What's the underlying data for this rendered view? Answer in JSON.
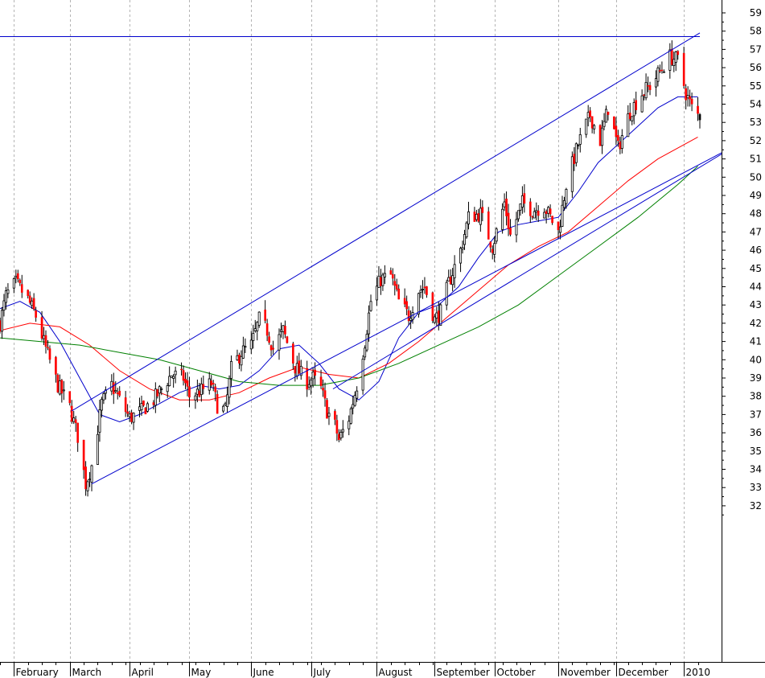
{
  "chart_data": {
    "type": "candlestick",
    "title": "",
    "xlabel": "",
    "ylabel": "",
    "grid": {
      "vertical": true,
      "horizontal": false,
      "style": "dashed"
    },
    "ylim": [
      31,
      59.5
    ],
    "y_ticks": [
      32,
      33,
      34,
      35,
      36,
      37,
      38,
      39,
      40,
      41,
      42,
      43,
      44,
      45,
      46,
      47,
      48,
      49,
      50,
      51,
      52,
      53,
      54,
      55,
      56,
      57,
      58,
      59
    ],
    "x_range": [
      "2009-01-26",
      "2010-01-12"
    ],
    "x_ticks": [
      {
        "date": "2009-02-02",
        "label": "February"
      },
      {
        "date": "2009-03-02",
        "label": "March"
      },
      {
        "date": "2009-04-01",
        "label": "April"
      },
      {
        "date": "2009-05-01",
        "label": "May"
      },
      {
        "date": "2009-06-01",
        "label": "June"
      },
      {
        "date": "2009-07-01",
        "label": "July"
      },
      {
        "date": "2009-08-03",
        "label": "August"
      },
      {
        "date": "2009-09-01",
        "label": "September"
      },
      {
        "date": "2009-10-01",
        "label": "October"
      },
      {
        "date": "2009-11-02",
        "label": "November"
      },
      {
        "date": "2009-12-01",
        "label": "December"
      },
      {
        "date": "2010-01-04",
        "label": "2010"
      }
    ],
    "colors": {
      "up": "#ffffff",
      "down": "#ff0000",
      "wick": "#000000",
      "last_down": "#000000"
    },
    "price_path": [
      [
        "2009-01-26",
        42.0
      ],
      [
        "2009-01-29",
        43.5
      ],
      [
        "2009-02-03",
        44.2
      ],
      [
        "2009-02-09",
        43.3
      ],
      [
        "2009-02-13",
        42.4
      ],
      [
        "2009-02-18",
        40.6
      ],
      [
        "2009-02-24",
        38.6
      ],
      [
        "2009-03-02",
        37.4
      ],
      [
        "2009-03-06",
        35.8
      ],
      [
        "2009-03-10",
        33.2
      ],
      [
        "2009-03-13",
        34.2
      ],
      [
        "2009-03-18",
        37.6
      ],
      [
        "2009-03-23",
        38.6
      ],
      [
        "2009-03-27",
        37.8
      ],
      [
        "2009-04-01",
        36.8
      ],
      [
        "2009-04-07",
        37.2
      ],
      [
        "2009-04-13",
        37.8
      ],
      [
        "2009-04-17",
        38.4
      ],
      [
        "2009-04-22",
        39.2
      ],
      [
        "2009-04-28",
        39.0
      ],
      [
        "2009-05-01",
        38.0
      ],
      [
        "2009-05-07",
        38.3
      ],
      [
        "2009-05-12",
        38.7
      ],
      [
        "2009-05-15",
        37.5
      ],
      [
        "2009-05-19",
        37.2
      ],
      [
        "2009-05-22",
        39.5
      ],
      [
        "2009-05-27",
        40.4
      ],
      [
        "2009-06-01",
        40.8
      ],
      [
        "2009-06-05",
        42.2
      ],
      [
        "2009-06-09",
        41.6
      ],
      [
        "2009-06-12",
        40.6
      ],
      [
        "2009-06-17",
        41.6
      ],
      [
        "2009-06-23",
        39.6
      ],
      [
        "2009-06-29",
        38.8
      ],
      [
        "2009-07-02",
        39.0
      ],
      [
        "2009-07-06",
        38.4
      ],
      [
        "2009-07-09",
        37.2
      ],
      [
        "2009-07-13",
        36.4
      ],
      [
        "2009-07-15",
        35.6
      ],
      [
        "2009-07-20",
        36.8
      ],
      [
        "2009-07-24",
        38.6
      ],
      [
        "2009-07-28",
        41.0
      ],
      [
        "2009-07-31",
        43.2
      ],
      [
        "2009-08-05",
        44.4
      ],
      [
        "2009-08-10",
        44.6
      ],
      [
        "2009-08-14",
        43.2
      ],
      [
        "2009-08-19",
        42.4
      ],
      [
        "2009-08-24",
        43.8
      ],
      [
        "2009-08-27",
        44.0
      ],
      [
        "2009-09-01",
        42.2
      ],
      [
        "2009-09-04",
        42.6
      ],
      [
        "2009-09-08",
        44.2
      ],
      [
        "2009-09-14",
        46.0
      ],
      [
        "2009-09-18",
        47.8
      ],
      [
        "2009-09-24",
        48.0
      ],
      [
        "2009-09-30",
        46.2
      ],
      [
        "2009-10-06",
        48.6
      ],
      [
        "2009-10-09",
        46.8
      ],
      [
        "2009-10-15",
        48.6
      ],
      [
        "2009-10-20",
        48.2
      ],
      [
        "2009-10-26",
        48.4
      ],
      [
        "2009-11-02",
        47.0
      ],
      [
        "2009-11-06",
        49.6
      ],
      [
        "2009-11-12",
        51.8
      ],
      [
        "2009-11-18",
        53.4
      ],
      [
        "2009-11-23",
        52.0
      ],
      [
        "2009-11-27",
        53.8
      ],
      [
        "2009-12-02",
        51.6
      ],
      [
        "2009-12-08",
        53.6
      ],
      [
        "2009-12-14",
        54.6
      ],
      [
        "2009-12-18",
        55.0
      ],
      [
        "2009-12-23",
        55.8
      ],
      [
        "2009-12-28",
        56.6
      ],
      [
        "2010-01-01",
        56.4
      ],
      [
        "2010-01-05",
        54.6
      ],
      [
        "2010-01-08",
        53.8
      ],
      [
        "2010-01-11",
        53.4
      ]
    ],
    "moving_averages": [
      {
        "color": "#0000cc",
        "path": [
          [
            "2009-01-26",
            42.8
          ],
          [
            "2009-02-05",
            43.2
          ],
          [
            "2009-02-15",
            42.6
          ],
          [
            "2009-02-25",
            41.0
          ],
          [
            "2009-03-07",
            39.0
          ],
          [
            "2009-03-17",
            37.0
          ],
          [
            "2009-03-27",
            36.6
          ],
          [
            "2009-04-06",
            37.0
          ],
          [
            "2009-04-16",
            37.6
          ],
          [
            "2009-04-26",
            38.2
          ],
          [
            "2009-05-06",
            38.6
          ],
          [
            "2009-05-16",
            38.4
          ],
          [
            "2009-05-26",
            38.6
          ],
          [
            "2009-06-05",
            39.4
          ],
          [
            "2009-06-15",
            40.6
          ],
          [
            "2009-06-25",
            40.8
          ],
          [
            "2009-07-05",
            39.8
          ],
          [
            "2009-07-15",
            38.4
          ],
          [
            "2009-07-25",
            37.8
          ],
          [
            "2009-08-04",
            38.8
          ],
          [
            "2009-08-14",
            41.2
          ],
          [
            "2009-08-24",
            42.6
          ],
          [
            "2009-09-03",
            43.0
          ],
          [
            "2009-09-13",
            44.0
          ],
          [
            "2009-09-23",
            45.6
          ],
          [
            "2009-10-03",
            47.0
          ],
          [
            "2009-10-13",
            47.4
          ],
          [
            "2009-10-23",
            47.6
          ],
          [
            "2009-11-02",
            47.8
          ],
          [
            "2009-11-12",
            49.2
          ],
          [
            "2009-11-22",
            50.8
          ],
          [
            "2009-12-02",
            51.8
          ],
          [
            "2009-12-12",
            52.8
          ],
          [
            "2009-12-22",
            53.8
          ],
          [
            "2010-01-01",
            54.4
          ],
          [
            "2010-01-11",
            54.4
          ]
        ]
      },
      {
        "color": "#ff0000",
        "path": [
          [
            "2009-01-26",
            41.6
          ],
          [
            "2009-02-10",
            42.0
          ],
          [
            "2009-02-25",
            41.8
          ],
          [
            "2009-03-12",
            40.8
          ],
          [
            "2009-03-27",
            39.4
          ],
          [
            "2009-04-11",
            38.4
          ],
          [
            "2009-04-26",
            37.8
          ],
          [
            "2009-05-11",
            37.8
          ],
          [
            "2009-05-26",
            38.2
          ],
          [
            "2009-06-10",
            39.0
          ],
          [
            "2009-06-25",
            39.6
          ],
          [
            "2009-07-10",
            39.2
          ],
          [
            "2009-07-25",
            39.0
          ],
          [
            "2009-08-09",
            39.8
          ],
          [
            "2009-08-24",
            41.0
          ],
          [
            "2009-09-08",
            42.4
          ],
          [
            "2009-09-23",
            43.8
          ],
          [
            "2009-10-08",
            45.2
          ],
          [
            "2009-10-23",
            46.2
          ],
          [
            "2009-11-07",
            47.0
          ],
          [
            "2009-11-22",
            48.4
          ],
          [
            "2009-12-07",
            49.8
          ],
          [
            "2009-12-22",
            51.0
          ],
          [
            "2010-01-11",
            52.2
          ]
        ]
      },
      {
        "color": "#008000",
        "path": [
          [
            "2009-01-26",
            41.2
          ],
          [
            "2009-02-15",
            41.0
          ],
          [
            "2009-03-07",
            40.8
          ],
          [
            "2009-03-27",
            40.4
          ],
          [
            "2009-04-16",
            40.0
          ],
          [
            "2009-05-06",
            39.4
          ],
          [
            "2009-05-26",
            38.8
          ],
          [
            "2009-06-15",
            38.6
          ],
          [
            "2009-07-05",
            38.6
          ],
          [
            "2009-07-25",
            39.0
          ],
          [
            "2009-08-14",
            39.8
          ],
          [
            "2009-09-03",
            40.8
          ],
          [
            "2009-09-23",
            41.8
          ],
          [
            "2009-10-13",
            43.0
          ],
          [
            "2009-11-02",
            44.6
          ],
          [
            "2009-11-22",
            46.2
          ],
          [
            "2009-12-12",
            47.8
          ],
          [
            "2010-01-01",
            49.6
          ],
          [
            "2010-01-11",
            50.6
          ]
        ]
      }
    ],
    "trend_lines": [
      {
        "color": "#0000cc",
        "from": [
          "2009-01-26",
          57.7
        ],
        "to": [
          "2010-01-12",
          57.7
        ]
      },
      {
        "color": "#0000cc",
        "from": [
          "2009-03-03",
          37.2
        ],
        "to": [
          "2010-01-12",
          57.9
        ]
      },
      {
        "color": "#0000cc",
        "from": [
          "2009-03-13",
          33.2
        ],
        "to": [
          "2010-01-31",
          51.8
        ]
      },
      {
        "color": "#0000cc",
        "from": [
          "2009-07-12",
          38.4
        ],
        "to": [
          "2010-01-31",
          51.8
        ]
      }
    ]
  }
}
